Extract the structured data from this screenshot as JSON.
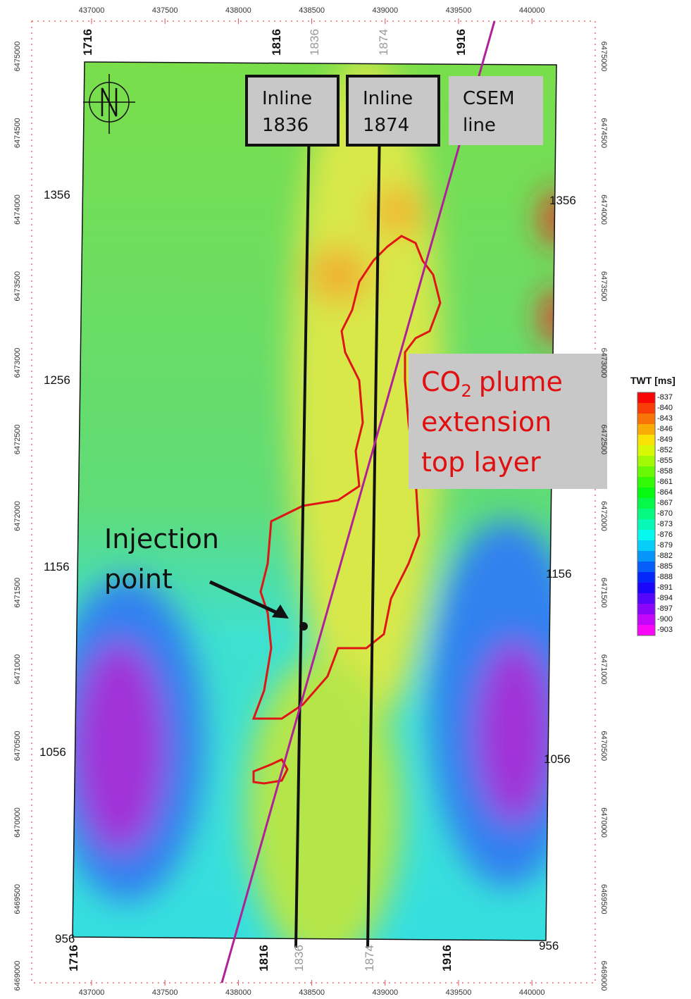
{
  "axes": {
    "top_x": [
      437000,
      437500,
      438000,
      438500,
      439000,
      439500,
      440000
    ],
    "bottom_x": [
      437000,
      437500,
      438000,
      438500,
      439000,
      439500,
      440000
    ],
    "left_y": [
      6475000,
      6474500,
      6474000,
      6473500,
      6473000,
      6472500,
      6472000,
      6471500,
      6471000,
      6470500,
      6470000,
      6469500,
      6469000
    ],
    "right_y": [
      6475000,
      6474500,
      6474000,
      6473500,
      6473000,
      6472500,
      6472000,
      6471500,
      6471000,
      6470500,
      6470000,
      6469500,
      6469000
    ]
  },
  "grid_labels": {
    "top": [
      "1716",
      "1816",
      "1836",
      "1874",
      "1916"
    ],
    "bottom": [
      "1716",
      "1816",
      "1836",
      "1874",
      "1916"
    ],
    "left": [
      "1356",
      "1256",
      "1156",
      "1056",
      "956"
    ],
    "right": [
      "1356",
      "1156",
      "1056",
      "956"
    ]
  },
  "boxes": [
    {
      "lines": [
        "Inline",
        "1836"
      ]
    },
    {
      "lines": [
        "Inline",
        "1874"
      ]
    },
    {
      "lines": [
        "CSEM",
        "line"
      ]
    }
  ],
  "plume_label": {
    "prefix": "CO",
    "subscript": "2",
    "suffix": "plume",
    "line2": "extension",
    "line3": "top layer"
  },
  "injection_label": [
    "Injection",
    "point"
  ],
  "legend": {
    "title": "TWT [ms]",
    "values": [
      -837,
      -840,
      -843,
      -846,
      -849,
      -852,
      -855,
      -858,
      -861,
      -864,
      -867,
      -870,
      -873,
      -876,
      -879,
      -882,
      -885,
      -888,
      -891,
      -894,
      -897,
      -900,
      -903
    ]
  }
}
